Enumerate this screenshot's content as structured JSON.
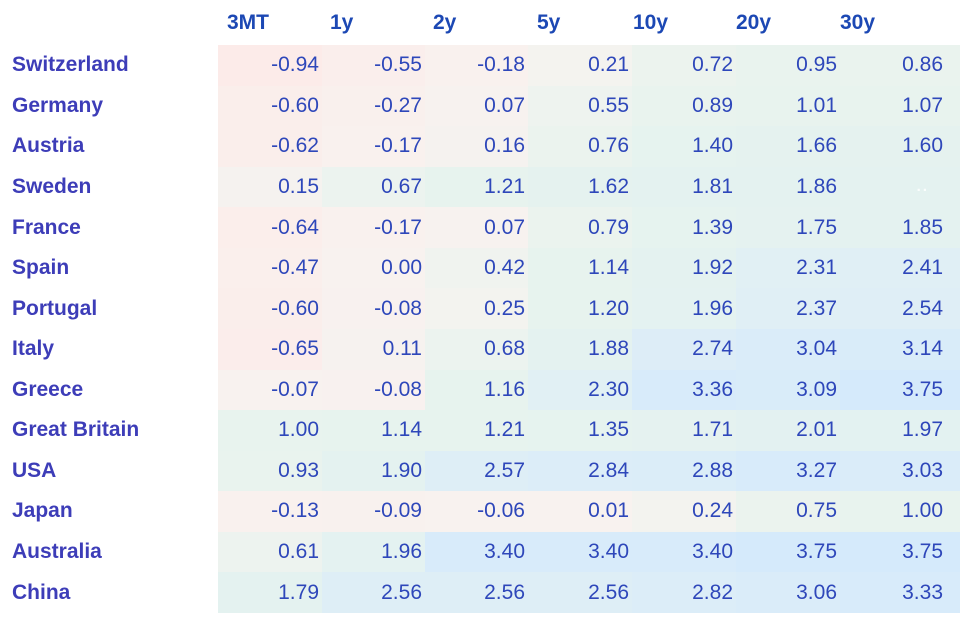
{
  "chart_data": {
    "type": "heatmap",
    "title": "",
    "columns": [
      "3MT",
      "1y",
      "2y",
      "5y",
      "10y",
      "20y",
      "30y"
    ],
    "rows": [
      {
        "label": "Switzerland",
        "values": [
          "-0.94",
          "-0.55",
          "-0.18",
          "0.21",
          "0.72",
          "0.95",
          "0.86"
        ]
      },
      {
        "label": "Germany",
        "values": [
          "-0.60",
          "-0.27",
          "0.07",
          "0.55",
          "0.89",
          "1.01",
          "1.07"
        ]
      },
      {
        "label": "Austria",
        "values": [
          "-0.62",
          "-0.17",
          "0.16",
          "0.76",
          "1.40",
          "1.66",
          "1.60"
        ]
      },
      {
        "label": "Sweden",
        "values": [
          "0.15",
          "0.67",
          "1.21",
          "1.62",
          "1.81",
          "1.86",
          ""
        ]
      },
      {
        "label": "France",
        "values": [
          "-0.64",
          "-0.17",
          "0.07",
          "0.79",
          "1.39",
          "1.75",
          "1.85"
        ]
      },
      {
        "label": "Spain",
        "values": [
          "-0.47",
          "0.00",
          "0.42",
          "1.14",
          "1.92",
          "2.31",
          "2.41"
        ]
      },
      {
        "label": "Portugal",
        "values": [
          "-0.60",
          "-0.08",
          "0.25",
          "1.20",
          "1.96",
          "2.37",
          "2.54"
        ]
      },
      {
        "label": "Italy",
        "values": [
          "-0.65",
          "0.11",
          "0.68",
          "1.88",
          "2.74",
          "3.04",
          "3.14"
        ]
      },
      {
        "label": "Greece",
        "values": [
          "-0.07",
          "-0.08",
          "1.16",
          "2.30",
          "3.36",
          "3.09",
          "3.75"
        ]
      },
      {
        "label": "Great Britain",
        "values": [
          "1.00",
          "1.14",
          "1.21",
          "1.35",
          "1.71",
          "2.01",
          "1.97"
        ]
      },
      {
        "label": "USA",
        "values": [
          "0.93",
          "1.90",
          "2.57",
          "2.84",
          "2.88",
          "3.27",
          "3.03"
        ]
      },
      {
        "label": "Japan",
        "values": [
          "-0.13",
          "-0.09",
          "-0.06",
          "0.01",
          "0.24",
          "0.75",
          "1.00"
        ]
      },
      {
        "label": "Australia",
        "values": [
          "0.61",
          "1.96",
          "3.40",
          "3.40",
          "3.40",
          "3.75",
          "3.75"
        ]
      },
      {
        "label": "China",
        "values": [
          "1.79",
          "2.56",
          "2.56",
          "2.56",
          "2.82",
          "3.06",
          "3.33"
        ]
      }
    ],
    "empty_cell_marker": "..",
    "layout_hints": {
      "value_alignment": "right",
      "grid": "off",
      "legend": "none"
    }
  },
  "colors": {
    "background": "#ffffff",
    "header_text": "#1c48b4",
    "country_text": "#3d3db8",
    "value_text": "#2e47ba",
    "heat_anchors": [
      {
        "v": -1.0,
        "c": "#fcebe9"
      },
      {
        "v": 0.0,
        "c": "#f8f2ef"
      },
      {
        "v": 0.4,
        "c": "#f0f3ef"
      },
      {
        "v": 1.0,
        "c": "#e8f3ee"
      },
      {
        "v": 1.9,
        "c": "#e4f2f0"
      },
      {
        "v": 2.4,
        "c": "#e0eff5"
      },
      {
        "v": 3.0,
        "c": "#daecf9"
      },
      {
        "v": 3.8,
        "c": "#d5eafb"
      }
    ]
  }
}
